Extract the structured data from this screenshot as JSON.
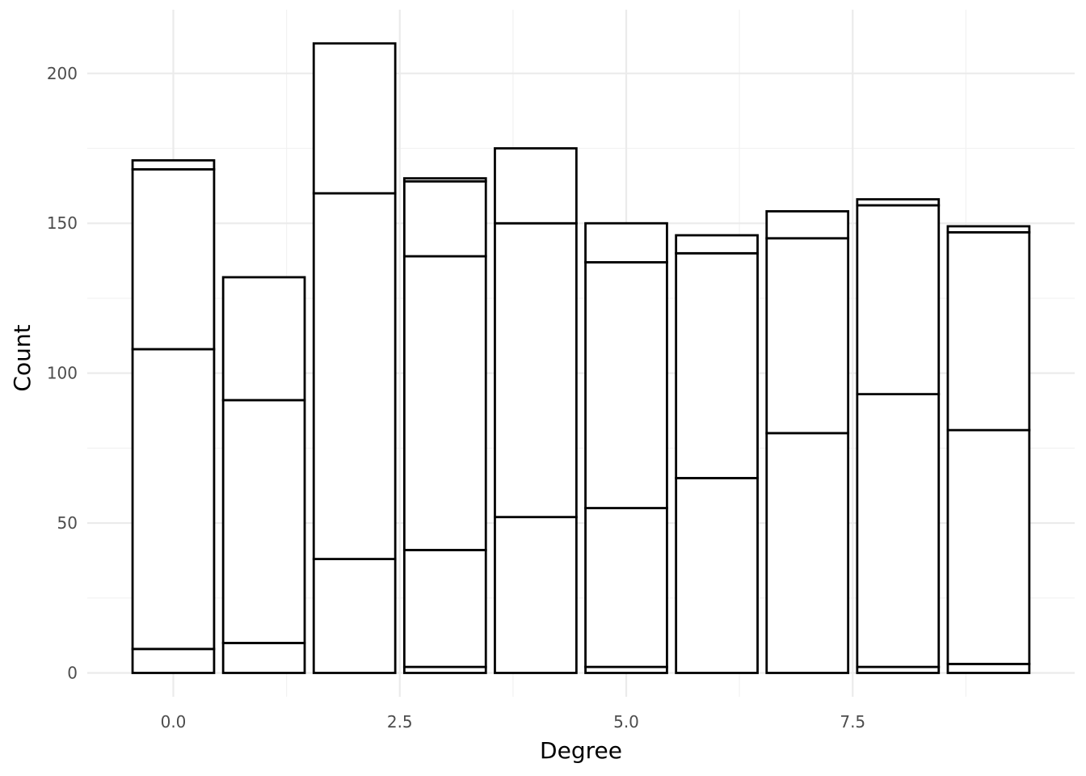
{
  "chart_data": {
    "type": "bar",
    "stacked": true,
    "title": "",
    "xlabel": "Degree",
    "ylabel": "Count",
    "xlim": [
      -0.9,
      9.9
    ],
    "ylim": [
      -8,
      221
    ],
    "x_ticks": [
      0.0,
      2.5,
      5.0,
      7.5
    ],
    "x_tick_labels": [
      "0.0",
      "2.5",
      "5.0",
      "7.5"
    ],
    "y_ticks": [
      0,
      50,
      100,
      150,
      200
    ],
    "y_tick_labels": [
      "0",
      "50",
      "100",
      "150",
      "200"
    ],
    "grid": true,
    "legend": "none",
    "bar_fill": "#ffffff",
    "bar_outline": "#000000",
    "bars": [
      {
        "x": 0,
        "boundaries": [
          0,
          8,
          108,
          168,
          171
        ]
      },
      {
        "x": 1,
        "boundaries": [
          0,
          10,
          91,
          132
        ]
      },
      {
        "x": 2,
        "boundaries": [
          0,
          38,
          160,
          210
        ]
      },
      {
        "x": 3,
        "boundaries": [
          0,
          2,
          41,
          139,
          164,
          165
        ]
      },
      {
        "x": 4,
        "boundaries": [
          0,
          52,
          150,
          175
        ]
      },
      {
        "x": 5,
        "boundaries": [
          0,
          2,
          55,
          137,
          150
        ]
      },
      {
        "x": 6,
        "boundaries": [
          0,
          65,
          140,
          146
        ]
      },
      {
        "x": 7,
        "boundaries": [
          0,
          80,
          145,
          154
        ]
      },
      {
        "x": 8,
        "boundaries": [
          0,
          2,
          93,
          156,
          158
        ]
      },
      {
        "x": 9,
        "boundaries": [
          0,
          3,
          81,
          147,
          149
        ]
      }
    ]
  }
}
